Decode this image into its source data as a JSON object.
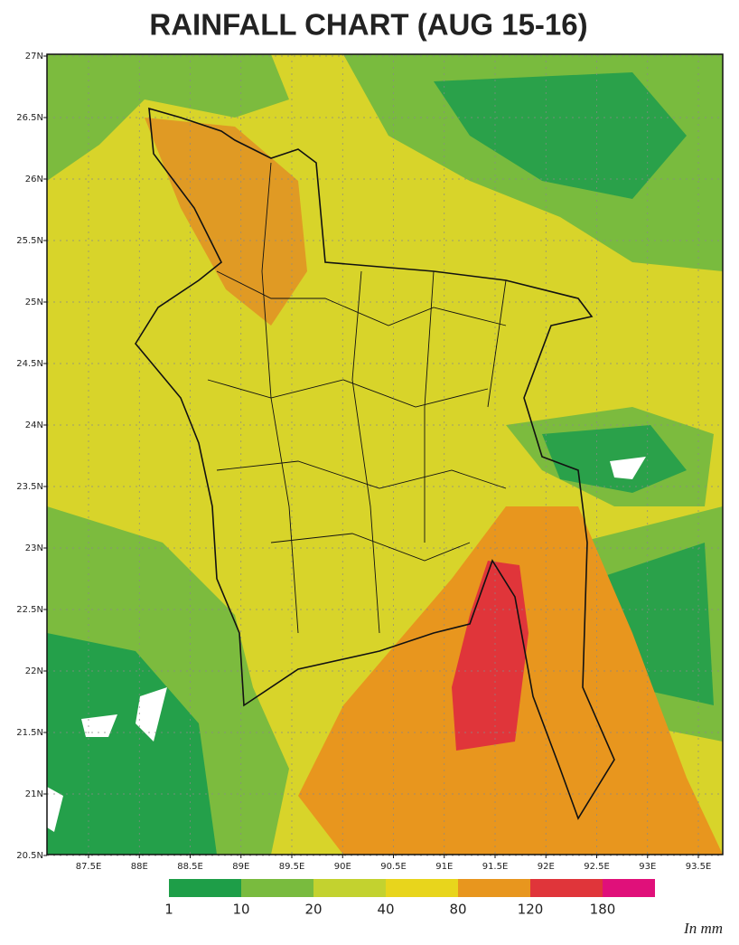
{
  "title": "RAINFALL CHART (AUG 15-16)",
  "map": {
    "lat_labels": [
      "27N",
      "26.5N",
      "26N",
      "25.5N",
      "25N",
      "24.5N",
      "24N",
      "23.5N",
      "23N",
      "22.5N",
      "22N",
      "21.5N",
      "21N",
      "20.5N"
    ],
    "lon_labels": [
      "87.5E",
      "88E",
      "88.5E",
      "89E",
      "89.5E",
      "90E",
      "90.5E",
      "91E",
      "91.5E",
      "92E",
      "92.5E",
      "93E",
      "93.5E"
    ]
  },
  "legend": {
    "labels": [
      "1",
      "10",
      "20",
      "40",
      "80",
      "120",
      "180"
    ],
    "colors": [
      "#1e9e48",
      "#79bb3e",
      "#c3d22f",
      "#e8d51c",
      "#e8961e",
      "#e0353a",
      "#e0107a"
    ],
    "unit": "In mm"
  }
}
